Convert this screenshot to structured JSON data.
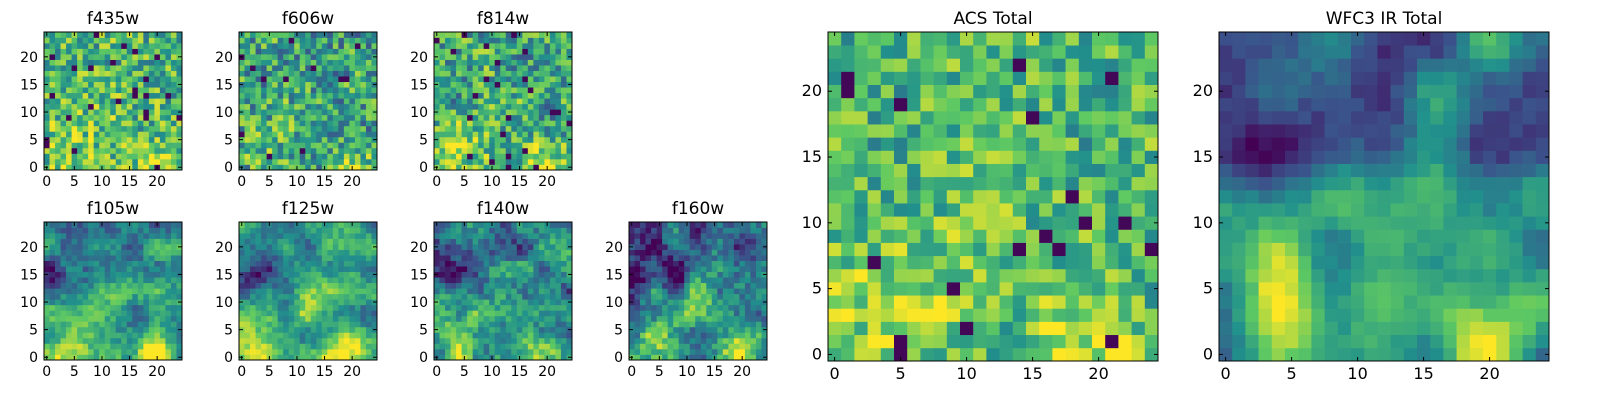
{
  "chart_data": [
    {
      "type": "heatmap",
      "title": "f435w",
      "xlim": [
        0,
        24
      ],
      "ylim": [
        0,
        24
      ],
      "xticks": [
        0,
        5,
        10,
        15,
        20
      ],
      "yticks": [
        0,
        5,
        10,
        15,
        20
      ],
      "grid": false
    },
    {
      "type": "heatmap",
      "title": "f606w",
      "xlim": [
        0,
        24
      ],
      "ylim": [
        0,
        24
      ],
      "xticks": [
        0,
        5,
        10,
        15,
        20
      ],
      "yticks": [
        0,
        5,
        10,
        15,
        20
      ],
      "grid": false
    },
    {
      "type": "heatmap",
      "title": "f814w",
      "xlim": [
        0,
        24
      ],
      "ylim": [
        0,
        24
      ],
      "xticks": [
        0,
        5,
        10,
        15,
        20
      ],
      "yticks": [
        0,
        5,
        10,
        15,
        20
      ],
      "grid": false
    },
    {
      "type": "heatmap",
      "title": "f105w",
      "xlim": [
        0,
        24
      ],
      "ylim": [
        0,
        24
      ],
      "xticks": [
        0,
        5,
        10,
        15,
        20
      ],
      "yticks": [
        0,
        5,
        10,
        15,
        20
      ],
      "grid": false
    },
    {
      "type": "heatmap",
      "title": "f125w",
      "xlim": [
        0,
        24
      ],
      "ylim": [
        0,
        24
      ],
      "xticks": [
        0,
        5,
        10,
        15,
        20
      ],
      "yticks": [
        0,
        5,
        10,
        15,
        20
      ],
      "grid": false
    },
    {
      "type": "heatmap",
      "title": "f140w",
      "xlim": [
        0,
        24
      ],
      "ylim": [
        0,
        24
      ],
      "xticks": [
        0,
        5,
        10,
        15,
        20
      ],
      "yticks": [
        0,
        5,
        10,
        15,
        20
      ],
      "grid": false
    },
    {
      "type": "heatmap",
      "title": "f160w",
      "xlim": [
        0,
        24
      ],
      "ylim": [
        0,
        24
      ],
      "xticks": [
        0,
        5,
        10,
        15,
        20
      ],
      "yticks": [
        0,
        5,
        10,
        15,
        20
      ],
      "grid": false
    },
    {
      "type": "heatmap",
      "title": "ACS Total",
      "xlim": [
        0,
        24
      ],
      "ylim": [
        0,
        24
      ],
      "xticks": [
        0,
        5,
        10,
        15,
        20
      ],
      "yticks": [
        0,
        5,
        10,
        15,
        20
      ],
      "grid": false
    },
    {
      "type": "heatmap",
      "title": "WFC3 IR Total",
      "xlim": [
        0,
        24
      ],
      "ylim": [
        0,
        24
      ],
      "xticks": [
        0,
        5,
        10,
        15,
        20
      ],
      "yticks": [
        0,
        5,
        10,
        15,
        20
      ],
      "grid": false
    }
  ],
  "colormap": [
    "#440154",
    "#3b528b",
    "#21918c",
    "#5ec962",
    "#fde725"
  ]
}
